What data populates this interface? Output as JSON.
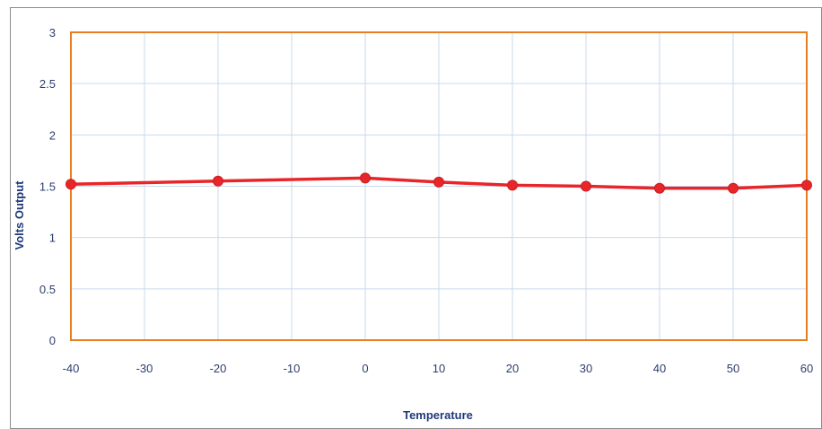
{
  "chart_data": {
    "type": "line",
    "title": "",
    "xlabel": "Temperature",
    "ylabel": "Volts Output",
    "x": [
      -40,
      -20,
      0,
      10,
      20,
      30,
      40,
      50,
      60
    ],
    "series": [
      {
        "values": [
          1.52,
          1.55,
          1.58,
          1.54,
          1.51,
          1.5,
          1.48,
          1.48,
          1.51
        ]
      }
    ],
    "xlim": [
      -40,
      60
    ],
    "ylim": [
      0,
      3
    ],
    "xticks": [
      "-40",
      "-30",
      "-20",
      "-10",
      "0",
      "10",
      "20",
      "30",
      "40",
      "50",
      "60"
    ],
    "yticks": [
      "0",
      "0.5",
      "1",
      "1.5",
      "2",
      "2.5",
      "3"
    ],
    "grid": true,
    "legend": "none",
    "colors": {
      "series": "#e8262a",
      "plot_border": "#e67e22",
      "grid": "#c9d9ee",
      "frame": "#8c8c8c",
      "tick_text": "#2c3e6b",
      "axis_title": "#1f3a7a"
    }
  }
}
